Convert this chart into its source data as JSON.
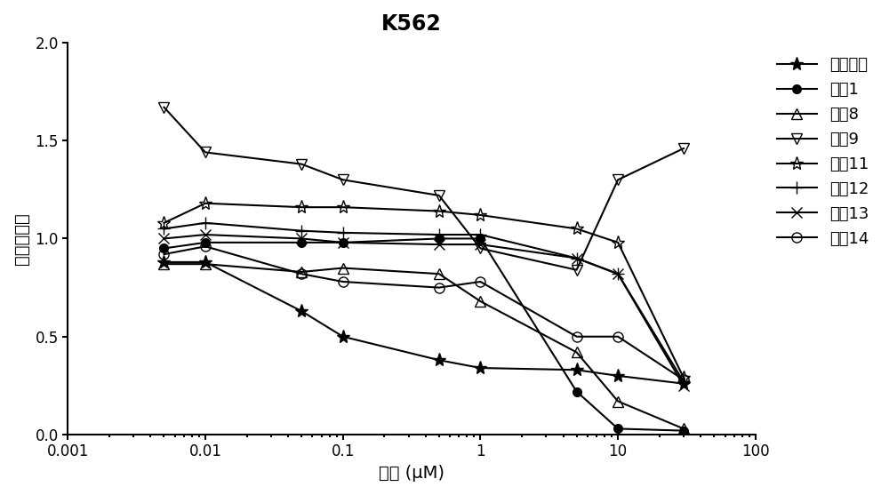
{
  "title": "K562",
  "xlabel": "浓度 (μM)",
  "ylabel": "细胞活力値",
  "xlim": [
    0.003,
    60
  ],
  "ylim": [
    0.0,
    2.0
  ],
  "yticks": [
    0.0,
    0.5,
    1.0,
    1.5,
    2.0
  ],
  "series": [
    {
      "label": "伊马替尼",
      "marker": "*",
      "fillstyle": "full",
      "markersize": 11,
      "x": [
        0.005,
        0.01,
        0.05,
        0.1,
        0.5,
        1.0,
        5.0,
        10.0,
        30.0
      ],
      "y": [
        0.88,
        0.88,
        0.63,
        0.5,
        0.38,
        0.34,
        0.33,
        0.3,
        0.26
      ]
    },
    {
      "label": "实例1",
      "marker": "o",
      "fillstyle": "full",
      "markersize": 7,
      "x": [
        0.005,
        0.01,
        0.05,
        0.1,
        0.5,
        1.0,
        5.0,
        10.0,
        30.0
      ],
      "y": [
        0.95,
        0.98,
        0.98,
        0.98,
        1.0,
        1.0,
        0.22,
        0.03,
        0.02
      ]
    },
    {
      "label": "实例8",
      "marker": "^",
      "fillstyle": "none",
      "markersize": 8,
      "x": [
        0.005,
        0.01,
        0.05,
        0.1,
        0.5,
        1.0,
        5.0,
        10.0,
        30.0
      ],
      "y": [
        0.87,
        0.87,
        0.83,
        0.85,
        0.82,
        0.68,
        0.42,
        0.17,
        0.03
      ]
    },
    {
      "label": "实例9",
      "marker": "v",
      "fillstyle": "none",
      "markersize": 9,
      "x": [
        0.005,
        0.01,
        0.05,
        0.1,
        0.5,
        1.0,
        5.0,
        10.0,
        30.0
      ],
      "y": [
        1.67,
        1.44,
        1.38,
        1.3,
        1.22,
        0.95,
        0.84,
        1.3,
        1.46
      ]
    },
    {
      "label": "实例11",
      "marker": "*",
      "fillstyle": "none",
      "markersize": 11,
      "x": [
        0.005,
        0.01,
        0.05,
        0.1,
        0.5,
        1.0,
        5.0,
        10.0,
        30.0
      ],
      "y": [
        1.08,
        1.18,
        1.16,
        1.16,
        1.14,
        1.12,
        1.05,
        0.98,
        0.29
      ]
    },
    {
      "label": "实例12",
      "marker": "+",
      "fillstyle": "full",
      "markersize": 10,
      "x": [
        0.005,
        0.01,
        0.05,
        0.1,
        0.5,
        1.0,
        5.0,
        10.0,
        30.0
      ],
      "y": [
        1.05,
        1.08,
        1.04,
        1.03,
        1.02,
        1.02,
        0.9,
        0.82,
        0.27
      ]
    },
    {
      "label": "实例13",
      "marker": "x",
      "fillstyle": "full",
      "markersize": 9,
      "x": [
        0.005,
        0.01,
        0.05,
        0.1,
        0.5,
        1.0,
        5.0,
        10.0,
        30.0
      ],
      "y": [
        1.0,
        1.02,
        1.0,
        0.98,
        0.97,
        0.97,
        0.9,
        0.82,
        0.25
      ]
    },
    {
      "label": "实例14",
      "marker": "o",
      "fillstyle": "none",
      "markersize": 8,
      "x": [
        0.005,
        0.01,
        0.05,
        0.1,
        0.5,
        1.0,
        5.0,
        10.0,
        30.0
      ],
      "y": [
        0.92,
        0.96,
        0.82,
        0.78,
        0.75,
        0.78,
        0.5,
        0.5,
        0.28
      ]
    }
  ],
  "line_color": "#000000",
  "title_fontsize": 17,
  "label_fontsize": 14,
  "tick_fontsize": 12,
  "legend_fontsize": 13
}
